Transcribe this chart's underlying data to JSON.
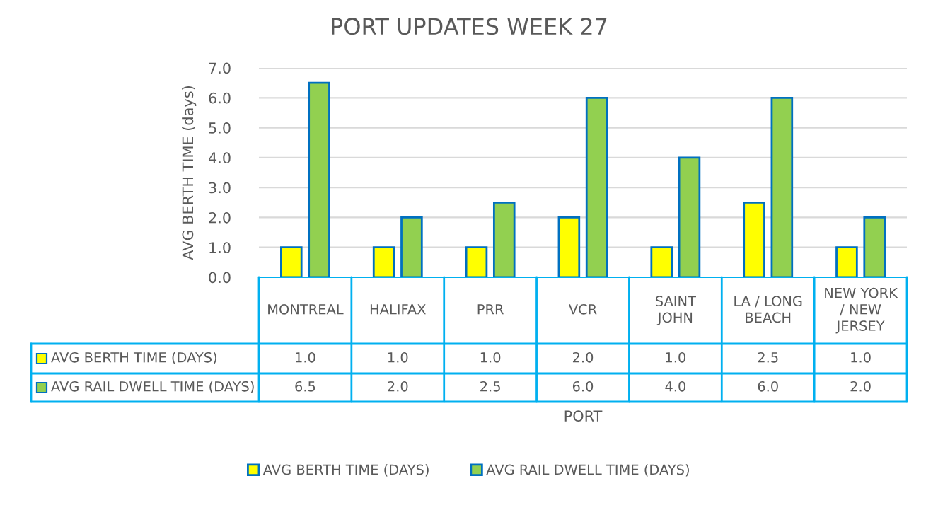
{
  "chart_data": {
    "type": "bar",
    "title": "PORT UPDATES WEEK 27",
    "ylabel": "AVG BERTH TIME (days)",
    "annotations": [
      "PORT"
    ],
    "categories": [
      "MONTREAL",
      "HALIFAX",
      "PRR",
      "VCR",
      "SAINT JOHN",
      "LA / LONG BEACH",
      "NEW YORK / NEW JERSEY"
    ],
    "series": [
      {
        "name": "AVG BERTH TIME (DAYS)",
        "color": "#ffff00",
        "values": [
          1.0,
          1.0,
          1.0,
          2.0,
          1.0,
          2.5,
          1.0
        ],
        "value_labels": [
          "1.0",
          "1.0",
          "1.0",
          "2.0",
          "1.0",
          "2.5",
          "1.0"
        ]
      },
      {
        "name": "AVG RAIL DWELL TIME (DAYS)",
        "color": "#92d050",
        "values": [
          6.5,
          2.0,
          2.5,
          6.0,
          4.0,
          6.0,
          2.0
        ],
        "value_labels": [
          "6.5",
          "2.0",
          "2.5",
          "6.0",
          "4.0",
          "6.0",
          "2.0"
        ]
      }
    ],
    "ylim": [
      0,
      7
    ],
    "yticks": [
      {
        "value": 0,
        "label": "0.0"
      },
      {
        "value": 1,
        "label": "1.0"
      },
      {
        "value": 2,
        "label": "2.0"
      },
      {
        "value": 3,
        "label": "3.0"
      },
      {
        "value": 4,
        "label": "4.0"
      },
      {
        "value": 5,
        "label": "5.0"
      },
      {
        "value": 6,
        "label": "6.0"
      },
      {
        "value": 7,
        "label": "7.0"
      }
    ],
    "grid": "y",
    "legend": "bottom"
  }
}
